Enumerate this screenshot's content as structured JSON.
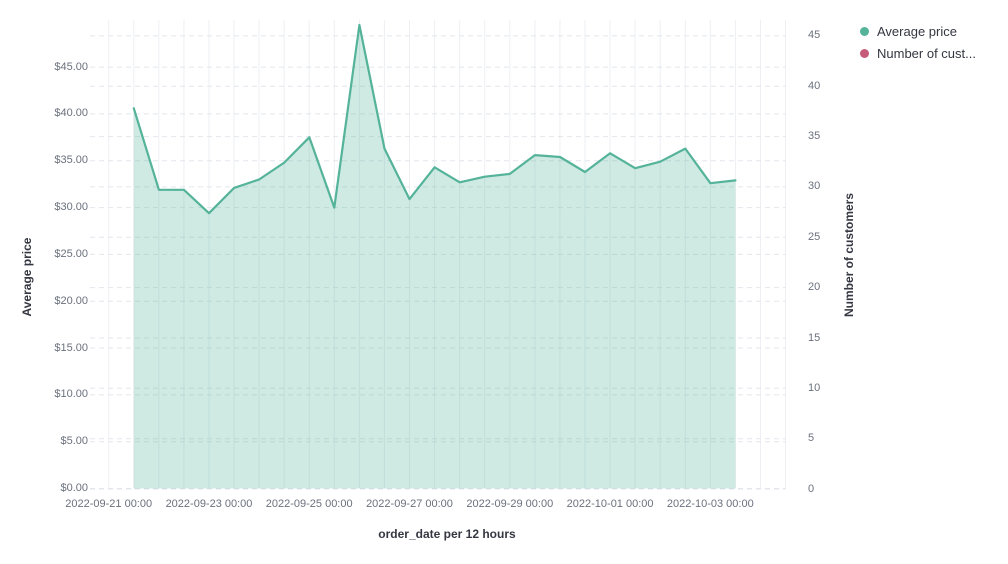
{
  "legend": {
    "items": [
      {
        "label": "Average price",
        "color": "#54B399"
      },
      {
        "label": "Number of cust...",
        "color": "#C65B79"
      }
    ]
  },
  "chart_data": {
    "type": "area",
    "title": "",
    "xlabel": "order_date per 12 hours",
    "x_axis": {
      "title": "order_date per 12 hours",
      "tick_labels": [
        "2022-09-21 00:00",
        "2022-09-23 00:00",
        "2022-09-25 00:00",
        "2022-09-27 00:00",
        "2022-09-29 00:00",
        "2022-10-01 00:00",
        "2022-10-03 00:00"
      ]
    },
    "left_axis": {
      "title": "Average price",
      "tick_values": [
        0,
        5,
        10,
        15,
        20,
        25,
        30,
        35,
        40,
        45
      ],
      "tick_labels": [
        "$0.00",
        "$5.00",
        "$10.00",
        "$15.00",
        "$20.00",
        "$25.00",
        "$30.00",
        "$35.00",
        "$40.00",
        "$45.00"
      ],
      "range": [
        0,
        50
      ]
    },
    "right_axis": {
      "title": "Number of customers",
      "tick_values": [
        0,
        5,
        10,
        15,
        20,
        25,
        30,
        35,
        40,
        45
      ],
      "tick_labels": [
        "0",
        "5",
        "10",
        "15",
        "20",
        "25",
        "30",
        "35",
        "40",
        "45"
      ],
      "range": [
        0,
        46.6
      ]
    },
    "grid": {
      "vertical": true,
      "horizontal_dashed": true
    },
    "legend_position": "top-right",
    "series": [
      {
        "name": "Average price",
        "axis": "left",
        "color": "#54B399",
        "fill_opacity": 0.28,
        "x": [
          "2022-09-21 12:00",
          "2022-09-22 00:00",
          "2022-09-22 12:00",
          "2022-09-23 00:00",
          "2022-09-23 12:00",
          "2022-09-24 00:00",
          "2022-09-24 12:00",
          "2022-09-25 00:00",
          "2022-09-25 12:00",
          "2022-09-26 00:00",
          "2022-09-26 12:00",
          "2022-09-27 00:00",
          "2022-09-27 12:00",
          "2022-09-28 00:00",
          "2022-09-28 12:00",
          "2022-09-29 00:00",
          "2022-09-29 12:00",
          "2022-09-30 00:00",
          "2022-09-30 12:00",
          "2022-10-01 00:00",
          "2022-10-01 12:00",
          "2022-10-02 00:00",
          "2022-10-02 12:00",
          "2022-10-03 00:00",
          "2022-10-03 12:00"
        ],
        "values": [
          40.6,
          31.9,
          31.9,
          29.4,
          32.1,
          33.0,
          34.8,
          37.5,
          30.0,
          49.5,
          36.3,
          30.9,
          34.3,
          32.7,
          33.3,
          33.6,
          35.6,
          35.4,
          33.8,
          35.8,
          34.2,
          34.9,
          36.3,
          32.6,
          32.9
        ]
      },
      {
        "name": "Number of customers",
        "axis": "right",
        "color": "#C65B79",
        "x": [],
        "values": []
      }
    ]
  }
}
